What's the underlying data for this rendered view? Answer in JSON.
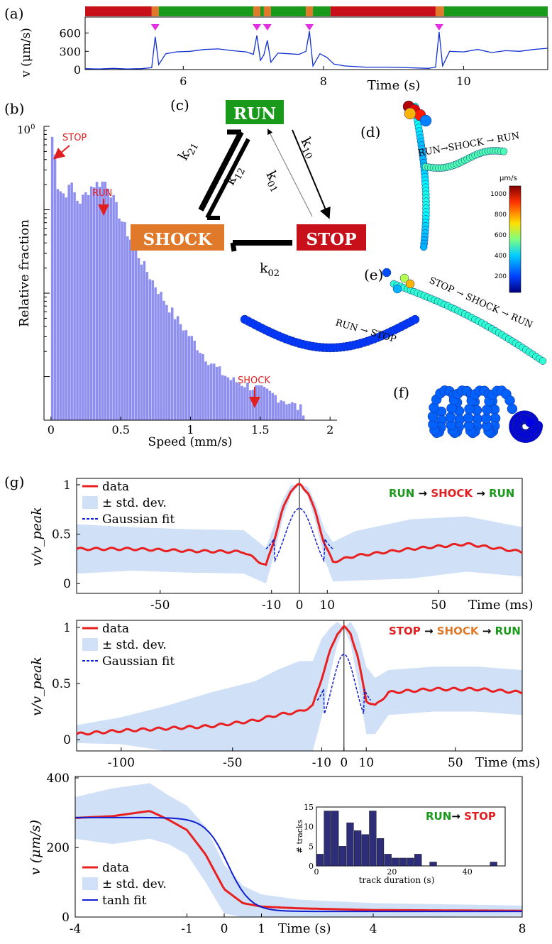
{
  "panel_labels": {
    "a": "(a)",
    "b": "(b)",
    "c": "(c)",
    "d": "(d)",
    "e": "(e)",
    "f": "(f)",
    "g": "(g)"
  },
  "colors": {
    "run": "#1a9a1a",
    "stop": "#c8101a",
    "shock": "#e07a2a",
    "histogram": "#8f8fef",
    "speed_trace": "#1030d0",
    "marker": "#e030e0",
    "data_line": "#e82020",
    "std_band": "#cfe0f7",
    "fit_line": "#1020d0",
    "inset_bars": "#2d2d7a"
  },
  "chart_data": [
    {
      "id": "a",
      "type": "line",
      "ylabel": "v (μm/s)",
      "xlabel": "Time (s)",
      "xlim": [
        4.6,
        11.2
      ],
      "ylim": [
        0,
        700
      ],
      "yticks": [
        "0",
        "300",
        "600"
      ],
      "xticks": [
        "6",
        "8",
        "10"
      ],
      "state_bar": [
        {
          "state": "stop",
          "x0": 4.6,
          "x1": 5.55
        },
        {
          "state": "shock",
          "x0": 5.55,
          "x1": 5.65
        },
        {
          "state": "run",
          "x0": 5.65,
          "x1": 7.0
        },
        {
          "state": "shock",
          "x0": 7.0,
          "x1": 7.1
        },
        {
          "state": "run",
          "x0": 7.1,
          "x1": 7.15
        },
        {
          "state": "shock",
          "x0": 7.15,
          "x1": 7.25
        },
        {
          "state": "run",
          "x0": 7.25,
          "x1": 7.75
        },
        {
          "state": "shock",
          "x0": 7.75,
          "x1": 7.85
        },
        {
          "state": "run",
          "x0": 7.85,
          "x1": 8.1
        },
        {
          "state": "stop",
          "x0": 8.1,
          "x1": 9.6
        },
        {
          "state": "shock",
          "x0": 9.6,
          "x1": 9.72
        },
        {
          "state": "run",
          "x0": 9.72,
          "x1": 11.2
        }
      ],
      "shock_markers": [
        5.6,
        7.05,
        7.2,
        7.8,
        9.65
      ],
      "series": [
        {
          "x": [
            4.6,
            4.8,
            5.0,
            5.2,
            5.4,
            5.55,
            5.6,
            5.65,
            5.75,
            5.9,
            6.1,
            6.3,
            6.5,
            6.7,
            6.9,
            7.0,
            7.05,
            7.1,
            7.15,
            7.2,
            7.25,
            7.35,
            7.5,
            7.65,
            7.75,
            7.8,
            7.85,
            7.95,
            8.05,
            8.15,
            8.3,
            8.6,
            8.9,
            9.2,
            9.5,
            9.6,
            9.65,
            9.7,
            9.8,
            10.0,
            10.2,
            10.4,
            10.6,
            10.8,
            11.0,
            11.2
          ],
          "values": [
            15,
            10,
            20,
            10,
            15,
            30,
            540,
            80,
            260,
            290,
            300,
            330,
            340,
            310,
            290,
            250,
            560,
            150,
            240,
            480,
            120,
            270,
            260,
            250,
            300,
            630,
            60,
            260,
            200,
            90,
            60,
            40,
            40,
            30,
            20,
            40,
            620,
            60,
            300,
            290,
            330,
            280,
            310,
            300,
            330,
            350
          ]
        }
      ]
    },
    {
      "id": "b",
      "type": "bar",
      "ylabel": "Relative fraction",
      "xlabel": "Speed (mm/s)",
      "xlim": [
        -0.05,
        2.05
      ],
      "ylim_log": [
        0.0003,
        1
      ],
      "ytop_label": "10",
      "xticks": [
        "0",
        "0.5",
        "1",
        "1.5",
        "2"
      ],
      "annotations": [
        {
          "label": "STOP",
          "x": 0.02
        },
        {
          "label": "RUN",
          "x": 0.38
        },
        {
          "label": "SHOCK",
          "x": 1.45
        }
      ],
      "x": [
        0.0,
        0.2,
        0.3,
        0.4,
        0.5,
        0.6,
        0.7,
        0.8,
        0.9,
        1.0,
        1.1,
        1.2,
        1.3,
        1.4,
        1.5,
        1.6,
        1.7,
        1.8
      ],
      "values": [
        0.75,
        0.12,
        0.2,
        0.22,
        0.08,
        0.035,
        0.017,
        0.009,
        0.005,
        0.003,
        0.0018,
        0.0012,
        0.0009,
        0.0008,
        0.0007,
        0.0006,
        0.0005,
        0.0004
      ]
    },
    {
      "id": "g1",
      "type": "line",
      "ylabel": "v/v_peak",
      "xlabel": "Time (ms)",
      "xlim": [
        -80,
        80
      ],
      "ylim": [
        -0.1,
        1.05
      ],
      "xticks": [
        "-50",
        "-10",
        "0",
        "10",
        "50"
      ],
      "yticks": [
        "0",
        "0.5",
        "1"
      ],
      "legend": [
        "data",
        "± std. dev.",
        "Gaussian fit"
      ],
      "series": [
        {
          "name": "data",
          "x": [
            -80,
            -60,
            -40,
            -20,
            -12,
            -9,
            -6,
            -3,
            0,
            3,
            6,
            9,
            12,
            20,
            40,
            60,
            80
          ],
          "values": [
            0.35,
            0.35,
            0.33,
            0.32,
            0.18,
            0.45,
            0.75,
            0.95,
            1.0,
            0.93,
            0.7,
            0.4,
            0.22,
            0.28,
            0.35,
            0.4,
            0.32
          ]
        }
      ],
      "std": [
        0.25,
        0.22,
        0.22,
        0.22,
        0.18,
        0.15,
        0.1,
        0.05,
        0,
        0.05,
        0.1,
        0.15,
        0.2,
        0.25,
        0.3,
        0.28,
        0.25
      ]
    },
    {
      "id": "g2",
      "type": "line",
      "ylabel": "v/v_peak",
      "xlabel": "Time (ms)",
      "xlim": [
        -120,
        80
      ],
      "ylim": [
        -0.1,
        1.05
      ],
      "xticks": [
        "-100",
        "-50",
        "-10",
        "0",
        "10",
        "50"
      ],
      "yticks": [
        "0",
        "0.5",
        "1"
      ],
      "legend": [
        "data",
        "± std. dev.",
        "Gaussian fit"
      ],
      "series": [
        {
          "name": "data",
          "x": [
            -120,
            -100,
            -80,
            -60,
            -40,
            -30,
            -20,
            -14,
            -10,
            -6,
            -3,
            0,
            3,
            6,
            10,
            14,
            20,
            40,
            60,
            80
          ],
          "values": [
            0.05,
            0.08,
            0.1,
            0.12,
            0.17,
            0.22,
            0.25,
            0.3,
            0.55,
            0.8,
            0.95,
            1.0,
            0.95,
            0.75,
            0.35,
            0.3,
            0.42,
            0.45,
            0.45,
            0.42
          ]
        }
      ],
      "std": [
        0.08,
        0.12,
        0.2,
        0.3,
        0.35,
        0.4,
        0.45,
        0.4,
        0.35,
        0.2,
        0.1,
        0,
        0.1,
        0.2,
        0.3,
        0.25,
        0.2,
        0.2,
        0.2,
        0.2
      ]
    },
    {
      "id": "g3",
      "type": "line",
      "ylabel": "v (μm/s)",
      "xlabel": "Time (s)",
      "xlim": [
        -4,
        8
      ],
      "ylim": [
        0,
        400
      ],
      "xticks": [
        "-4",
        "-1",
        "0",
        "1",
        "4",
        "8"
      ],
      "yticks": [
        "0",
        "200",
        "400"
      ],
      "legend": [
        "data",
        "± std. dev.",
        "tanh fit"
      ],
      "series": [
        {
          "name": "data",
          "x": [
            -4,
            -3,
            -2,
            -1.5,
            -1,
            -0.5,
            0,
            0.5,
            1,
            2,
            4,
            8
          ],
          "values": [
            285,
            290,
            305,
            280,
            250,
            180,
            80,
            40,
            30,
            25,
            20,
            18
          ]
        }
      ],
      "std": [
        60,
        80,
        80,
        70,
        70,
        80,
        70,
        50,
        35,
        25,
        20,
        15
      ],
      "inset": {
        "ylabel": "# tracks",
        "xlabel": "track duration (s)",
        "xticks": [
          "0",
          "20",
          "40"
        ],
        "yticks": [
          "0",
          "5",
          "10",
          "15"
        ],
        "bins": [
          0,
          2,
          4,
          6,
          8,
          10,
          12,
          14,
          16,
          18,
          20,
          22,
          24,
          26,
          28,
          30,
          32,
          34,
          36,
          38,
          40,
          42,
          44,
          46,
          48
        ],
        "values": [
          3,
          14,
          14,
          5,
          11,
          9,
          8,
          14,
          7,
          3,
          2,
          2,
          2,
          3,
          0,
          1,
          0,
          0,
          0,
          0,
          0,
          0,
          0,
          1,
          0
        ]
      }
    }
  ],
  "diagram": {
    "states": {
      "run": "RUN",
      "shock": "SHOCK",
      "stop": "STOP"
    },
    "rates": {
      "k21": "k",
      "k21_sub": "21",
      "k12": "k",
      "k12_sub": "12",
      "k10": "k",
      "k10_sub": "10",
      "k01": "k",
      "k01_sub": "01",
      "k02": "k",
      "k02_sub": "02"
    },
    "arrow": "→"
  },
  "track_labels": {
    "d": {
      "a": "RUN",
      "b": "SHOCK",
      "c": "RUN"
    },
    "e": {
      "a": "STOP",
      "b": "SHOCK",
      "c": "RUN"
    },
    "f": {
      "a": "RUN",
      "b": "STOP"
    }
  },
  "colorbar": {
    "unit": "μm/s",
    "ticks": [
      "1000",
      "800",
      "600",
      "400",
      "200"
    ]
  },
  "g_headers": {
    "g1": {
      "a": "RUN",
      "b": "SHOCK",
      "c": "RUN"
    },
    "g2": {
      "a": "STOP",
      "b": "SHOCK",
      "c": "RUN"
    },
    "g3": {
      "a": "RUN",
      "b": "STOP"
    }
  }
}
